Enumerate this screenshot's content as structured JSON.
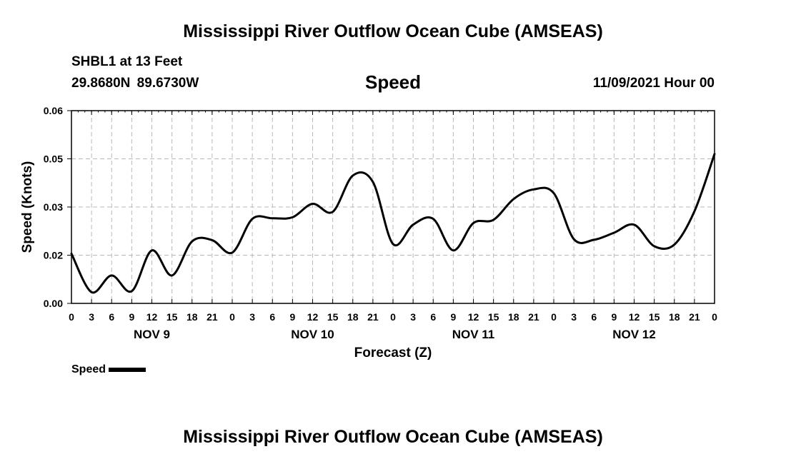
{
  "header": {
    "title": "Mississippi River Outflow Ocean Cube (AMSEAS)",
    "station": "SHBL1 at 13 Feet",
    "coords": "29.8680N  89.6730W",
    "variable": "Speed",
    "datetime": "11/09/2021 Hour 00"
  },
  "legend": {
    "label": "Speed"
  },
  "footer": {
    "title": "Mississippi River Outflow Ocean Cube (AMSEAS)"
  },
  "chart_data": {
    "type": "line",
    "title": "Speed",
    "xlabel": "Forecast (Z)",
    "ylabel": "Speed (Knots)",
    "ylim": [
      0,
      0.06
    ],
    "xlim": [
      0,
      96
    ],
    "yticks": [
      "0.00",
      "0.02",
      "0.03",
      "0.05",
      "0.06"
    ],
    "ytick_values": [
      0,
      0.015,
      0.03,
      0.045,
      0.06
    ],
    "xtick_labels": [
      "0",
      "3",
      "6",
      "9",
      "12",
      "15",
      "18",
      "21",
      "0",
      "3",
      "6",
      "9",
      "12",
      "15",
      "18",
      "21",
      "0",
      "3",
      "6",
      "9",
      "12",
      "15",
      "18",
      "21",
      "0",
      "3",
      "6",
      "9",
      "12",
      "15",
      "18",
      "21",
      "0"
    ],
    "day_labels": [
      {
        "label": "NOV 9",
        "hour": 12
      },
      {
        "label": "NOV 10",
        "hour": 36
      },
      {
        "label": "NOV 11",
        "hour": 60
      },
      {
        "label": "NOV 12",
        "hour": 84
      }
    ],
    "grid": true,
    "legend": "bottom-left",
    "series": [
      {
        "name": "Speed",
        "x": [
          0,
          3,
          6,
          9,
          12,
          15,
          18,
          21,
          24,
          27,
          30,
          33,
          36,
          39,
          42,
          45,
          48,
          51,
          54,
          57,
          60,
          63,
          66,
          69,
          72,
          75,
          78,
          81,
          84,
          87,
          90,
          93,
          96
        ],
        "y": [
          0.0155,
          0.0035,
          0.0087,
          0.0038,
          0.0165,
          0.0087,
          0.0193,
          0.0197,
          0.0158,
          0.0263,
          0.0265,
          0.0268,
          0.031,
          0.0285,
          0.0398,
          0.0378,
          0.0185,
          0.0245,
          0.0263,
          0.0165,
          0.025,
          0.026,
          0.0325,
          0.0355,
          0.0343,
          0.02,
          0.0198,
          0.022,
          0.0245,
          0.0178,
          0.0183,
          0.0287,
          0.0465
        ]
      }
    ]
  }
}
